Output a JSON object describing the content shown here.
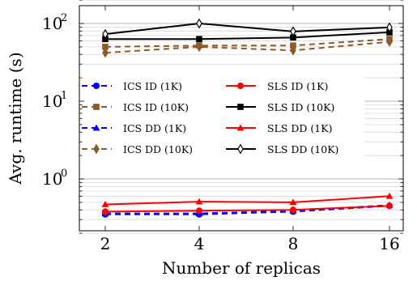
{
  "chart_data": {
    "type": "line",
    "title": "",
    "xlabel": "Number of replicas",
    "ylabel": "Avg. runtime (s)",
    "x": [
      2,
      4,
      8,
      16
    ],
    "x_ticks": [
      "2",
      "4",
      "8",
      "16"
    ],
    "y_scale": "log",
    "ylim": [
      0.2,
      200
    ],
    "y_ticks": [
      {
        "base": "10",
        "exp": "0",
        "value": 1
      },
      {
        "base": "10",
        "exp": "1",
        "value": 10
      },
      {
        "base": "10",
        "exp": "2",
        "value": 100
      }
    ],
    "grid": "y-major-and-minor",
    "legend_position": "center",
    "series": [
      {
        "name": "ICS ID (1K)",
        "color": "#0000ff",
        "dash": "dashed",
        "marker": "circle",
        "values": [
          0.35,
          0.35,
          0.38,
          0.45
        ]
      },
      {
        "name": "ICS ID (10K)",
        "color": "#8b5a2b",
        "dash": "dashed",
        "marker": "square",
        "values": [
          50,
          52,
          52,
          63
        ]
      },
      {
        "name": "ICS DD (1K)",
        "color": "#0000ff",
        "dash": "dashed",
        "marker": "triangle",
        "values": [
          0.36,
          0.36,
          0.39,
          0.46
        ]
      },
      {
        "name": "ICS DD (10K)",
        "color": "#8b5a2b",
        "dash": "dashed",
        "marker": "diamond",
        "values": [
          42,
          50,
          45,
          58
        ]
      },
      {
        "name": "SLS ID (1K)",
        "color": "#ff0000",
        "dash": "solid",
        "marker": "circle",
        "values": [
          0.38,
          0.39,
          0.4,
          0.45
        ]
      },
      {
        "name": "SLS ID (10K)",
        "color": "#000000",
        "dash": "solid",
        "marker": "square",
        "values": [
          63,
          63,
          66,
          77
        ]
      },
      {
        "name": "SLS DD (1K)",
        "color": "#ff0000",
        "dash": "solid",
        "marker": "triangle",
        "values": [
          0.47,
          0.51,
          0.5,
          0.6
        ]
      },
      {
        "name": "SLS DD (10K)",
        "color": "#000000",
        "dash": "solid",
        "marker": "diamond",
        "values": [
          73,
          100,
          79,
          89
        ]
      }
    ]
  }
}
